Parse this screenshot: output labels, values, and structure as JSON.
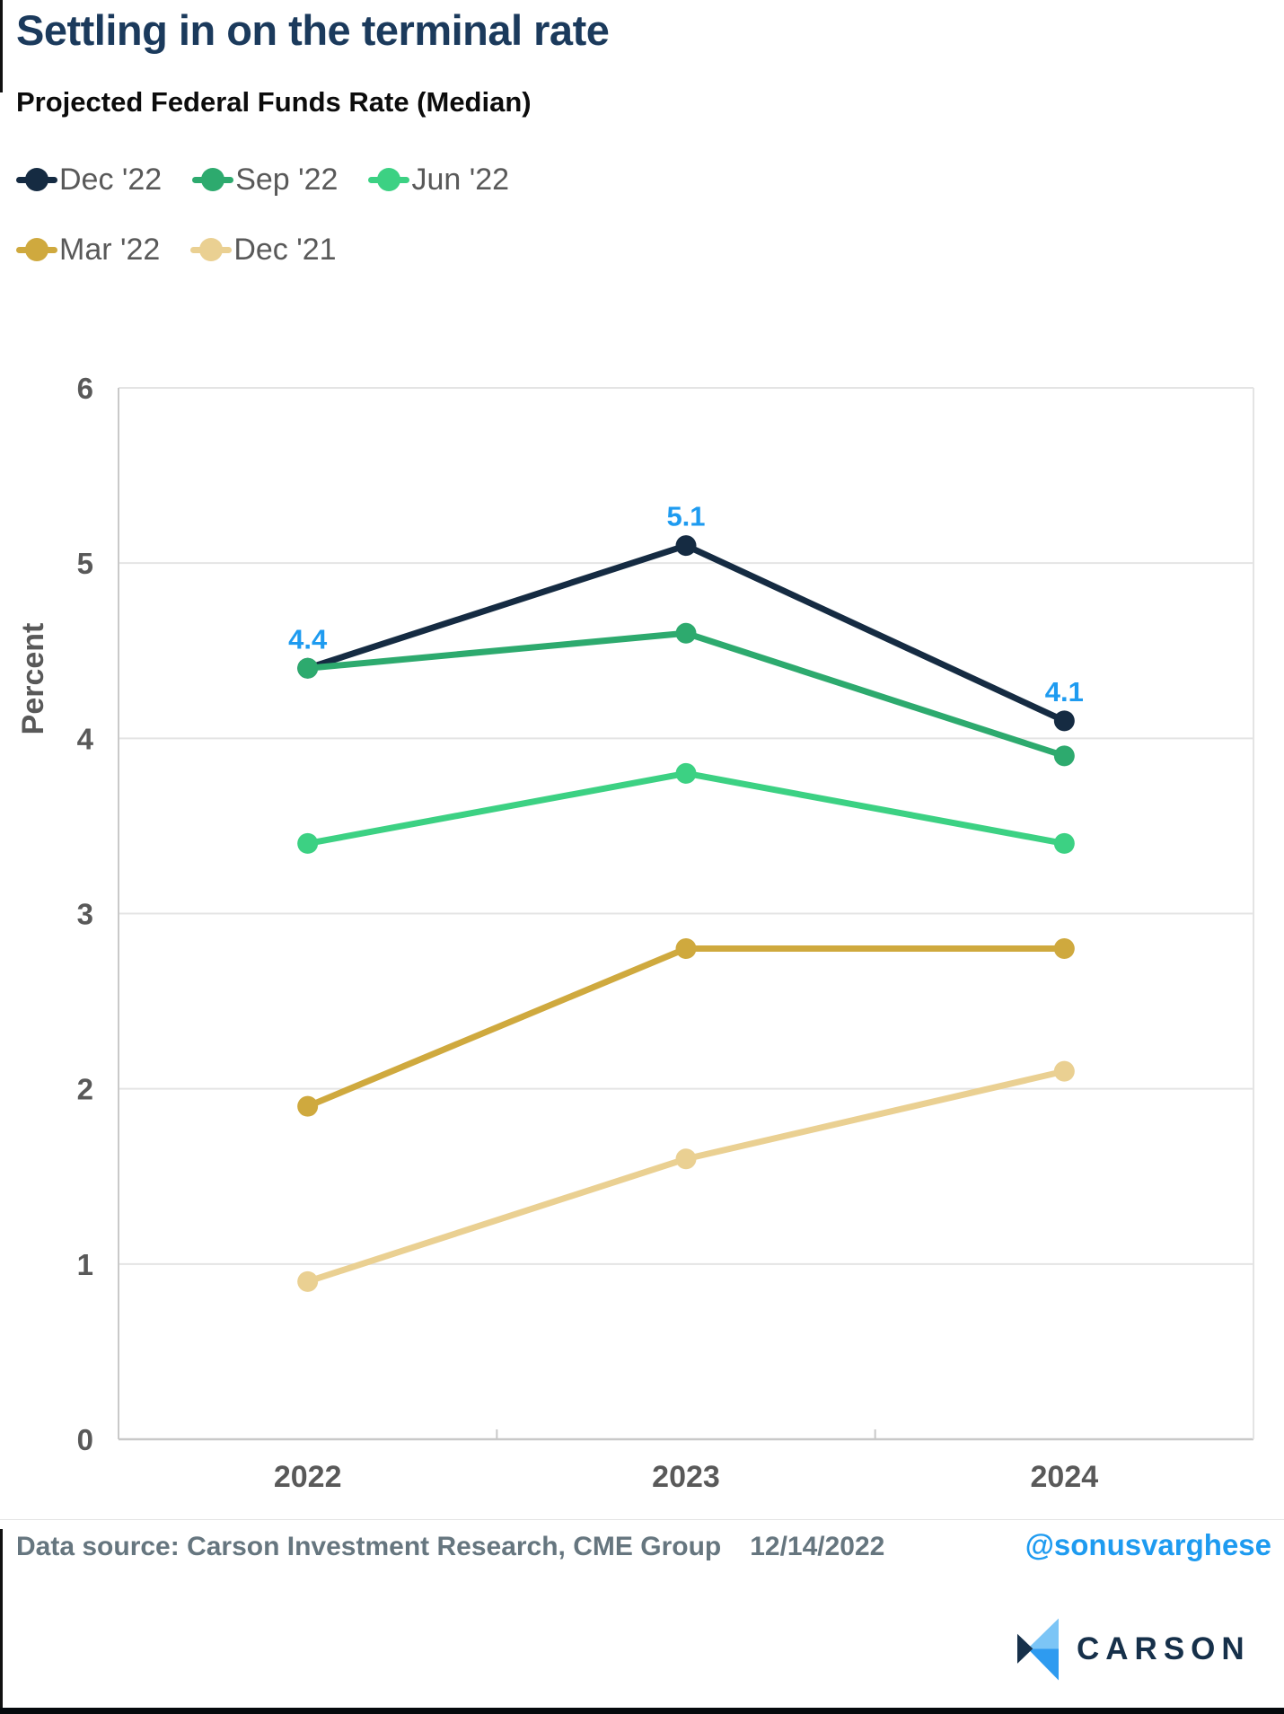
{
  "header": {
    "title": "Settling in on the terminal rate",
    "subtitle": "Projected Federal Funds Rate (Median)"
  },
  "chart_data": {
    "type": "line",
    "title": "Projected Federal Funds Rate (Median)",
    "categories": [
      "2022",
      "2023",
      "2024"
    ],
    "series": [
      {
        "name": "Dec '22",
        "color": "#152b42",
        "values": [
          4.4,
          5.1,
          4.1
        ]
      },
      {
        "name": "Sep '22",
        "color": "#2daa6e",
        "values": [
          4.4,
          4.6,
          3.9
        ]
      },
      {
        "name": "Jun '22",
        "color": "#3cd183",
        "values": [
          3.4,
          3.8,
          3.4
        ]
      },
      {
        "name": "Mar '22",
        "color": "#cfa93e",
        "values": [
          1.9,
          2.8,
          2.8
        ]
      },
      {
        "name": "Dec '21",
        "color": "#ead092",
        "values": [
          0.9,
          1.6,
          2.1
        ]
      }
    ],
    "data_labels": {
      "series": "Dec '22",
      "color": "#1e9bf0",
      "labels": [
        "4.4",
        "5.1",
        "4.1"
      ]
    },
    "xlabel": "",
    "ylabel": "Percent",
    "ylim": [
      0,
      6
    ],
    "y_ticks": [
      0,
      1,
      2,
      3,
      4,
      5,
      6
    ],
    "grid": "horizontal",
    "legend_position": "top-left"
  },
  "legend": {
    "rows": [
      [
        "Dec '22",
        "Sep '22",
        "Jun '22"
      ],
      [
        "Mar '22",
        "Dec '21"
      ]
    ]
  },
  "footer": {
    "source": "Data source: Carson Investment Research, CME Group",
    "date": "12/14/2022",
    "handle": "@sonusvarghese",
    "wordmark": "CARSON"
  },
  "colors": {
    "title_navy": "#1b3a5c",
    "axis_text": "#595959",
    "gridline": "#e4e4e4",
    "axis_line": "#c9c9c9",
    "data_label_blue": "#1e9bf0",
    "handle_blue": "#1e9bf0",
    "source_text": "#66767f",
    "bottom_bar": "#05090d",
    "brand_light_blue": "#7cc5f6",
    "brand_blue": "#2e9bf0",
    "brand_navy": "#16304a"
  }
}
